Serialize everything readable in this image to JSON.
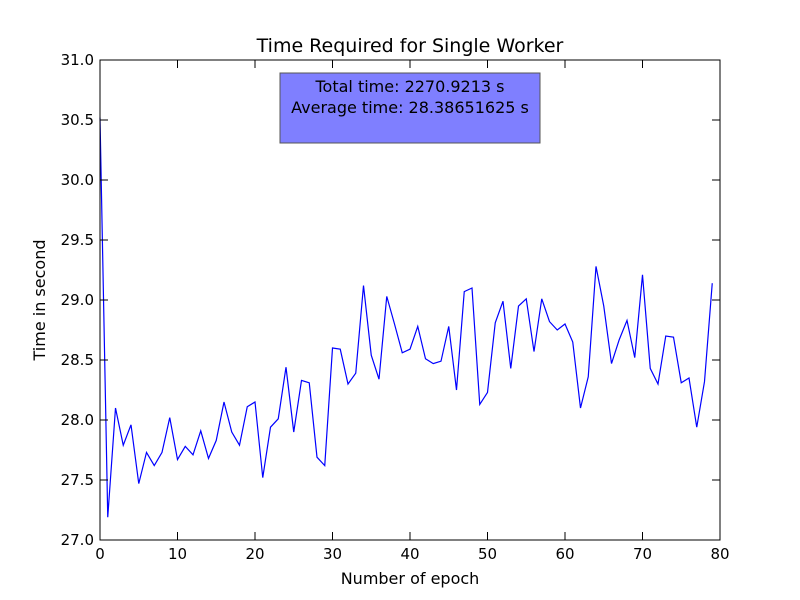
{
  "chart_data": {
    "type": "line",
    "title": "Time Required for Single Worker",
    "xlabel": "Number of epoch",
    "ylabel": "Time in second",
    "xlim": [
      0,
      80
    ],
    "ylim": [
      27.0,
      31.0
    ],
    "grid": false,
    "x_ticks": [
      "0",
      "10",
      "20",
      "30",
      "40",
      "50",
      "60",
      "70",
      "80"
    ],
    "y_ticks": [
      "27.0",
      "27.5",
      "28.0",
      "28.5",
      "29.0",
      "29.5",
      "30.0",
      "30.5",
      "31.0"
    ],
    "line_color": "#0000ff",
    "annotation": {
      "lines": [
        "Total time: 2270.9213 s",
        "Average time: 28.38651625 s"
      ],
      "background": "#7f7fff",
      "border": "#555555"
    },
    "series": [
      {
        "x": [
          0,
          1,
          2,
          3,
          4,
          5,
          6,
          7,
          8,
          9,
          10,
          11,
          12,
          13,
          14,
          15,
          16,
          17,
          18,
          19,
          20,
          21,
          22,
          23,
          24,
          25,
          26,
          27,
          28,
          29,
          30,
          31,
          32,
          33,
          34,
          35,
          36,
          37,
          38,
          39,
          40,
          41,
          42,
          43,
          44,
          45,
          46,
          47,
          48,
          49,
          50,
          51,
          52,
          53,
          54,
          55,
          56,
          57,
          58,
          59,
          60,
          61,
          62,
          63,
          64,
          65,
          66,
          67,
          68,
          69,
          70,
          71,
          72,
          73,
          74,
          75,
          76,
          77,
          78,
          79
        ],
        "y": [
          30.52,
          27.19,
          28.1,
          27.79,
          27.96,
          27.47,
          27.73,
          27.62,
          27.73,
          28.02,
          27.67,
          27.78,
          27.71,
          27.91,
          27.68,
          27.83,
          28.15,
          27.9,
          27.79,
          28.11,
          28.15,
          27.52,
          27.94,
          28.01,
          28.44,
          27.9,
          28.33,
          28.31,
          27.69,
          27.62,
          28.6,
          28.59,
          28.3,
          28.39,
          29.12,
          28.54,
          28.34,
          29.03,
          28.8,
          28.56,
          28.59,
          28.78,
          28.51,
          28.47,
          28.49,
          28.78,
          28.25,
          29.07,
          29.1,
          28.13,
          28.23,
          28.81,
          28.99,
          28.43,
          28.95,
          29.01,
          28.57,
          29.01,
          28.82,
          28.75,
          28.8,
          28.65,
          28.1,
          28.36,
          29.28,
          28.95,
          28.47,
          28.67,
          28.83,
          28.52,
          29.21,
          28.43,
          28.3,
          28.7,
          28.69,
          28.31,
          28.35,
          27.94,
          28.32,
          29.14
        ]
      }
    ]
  }
}
